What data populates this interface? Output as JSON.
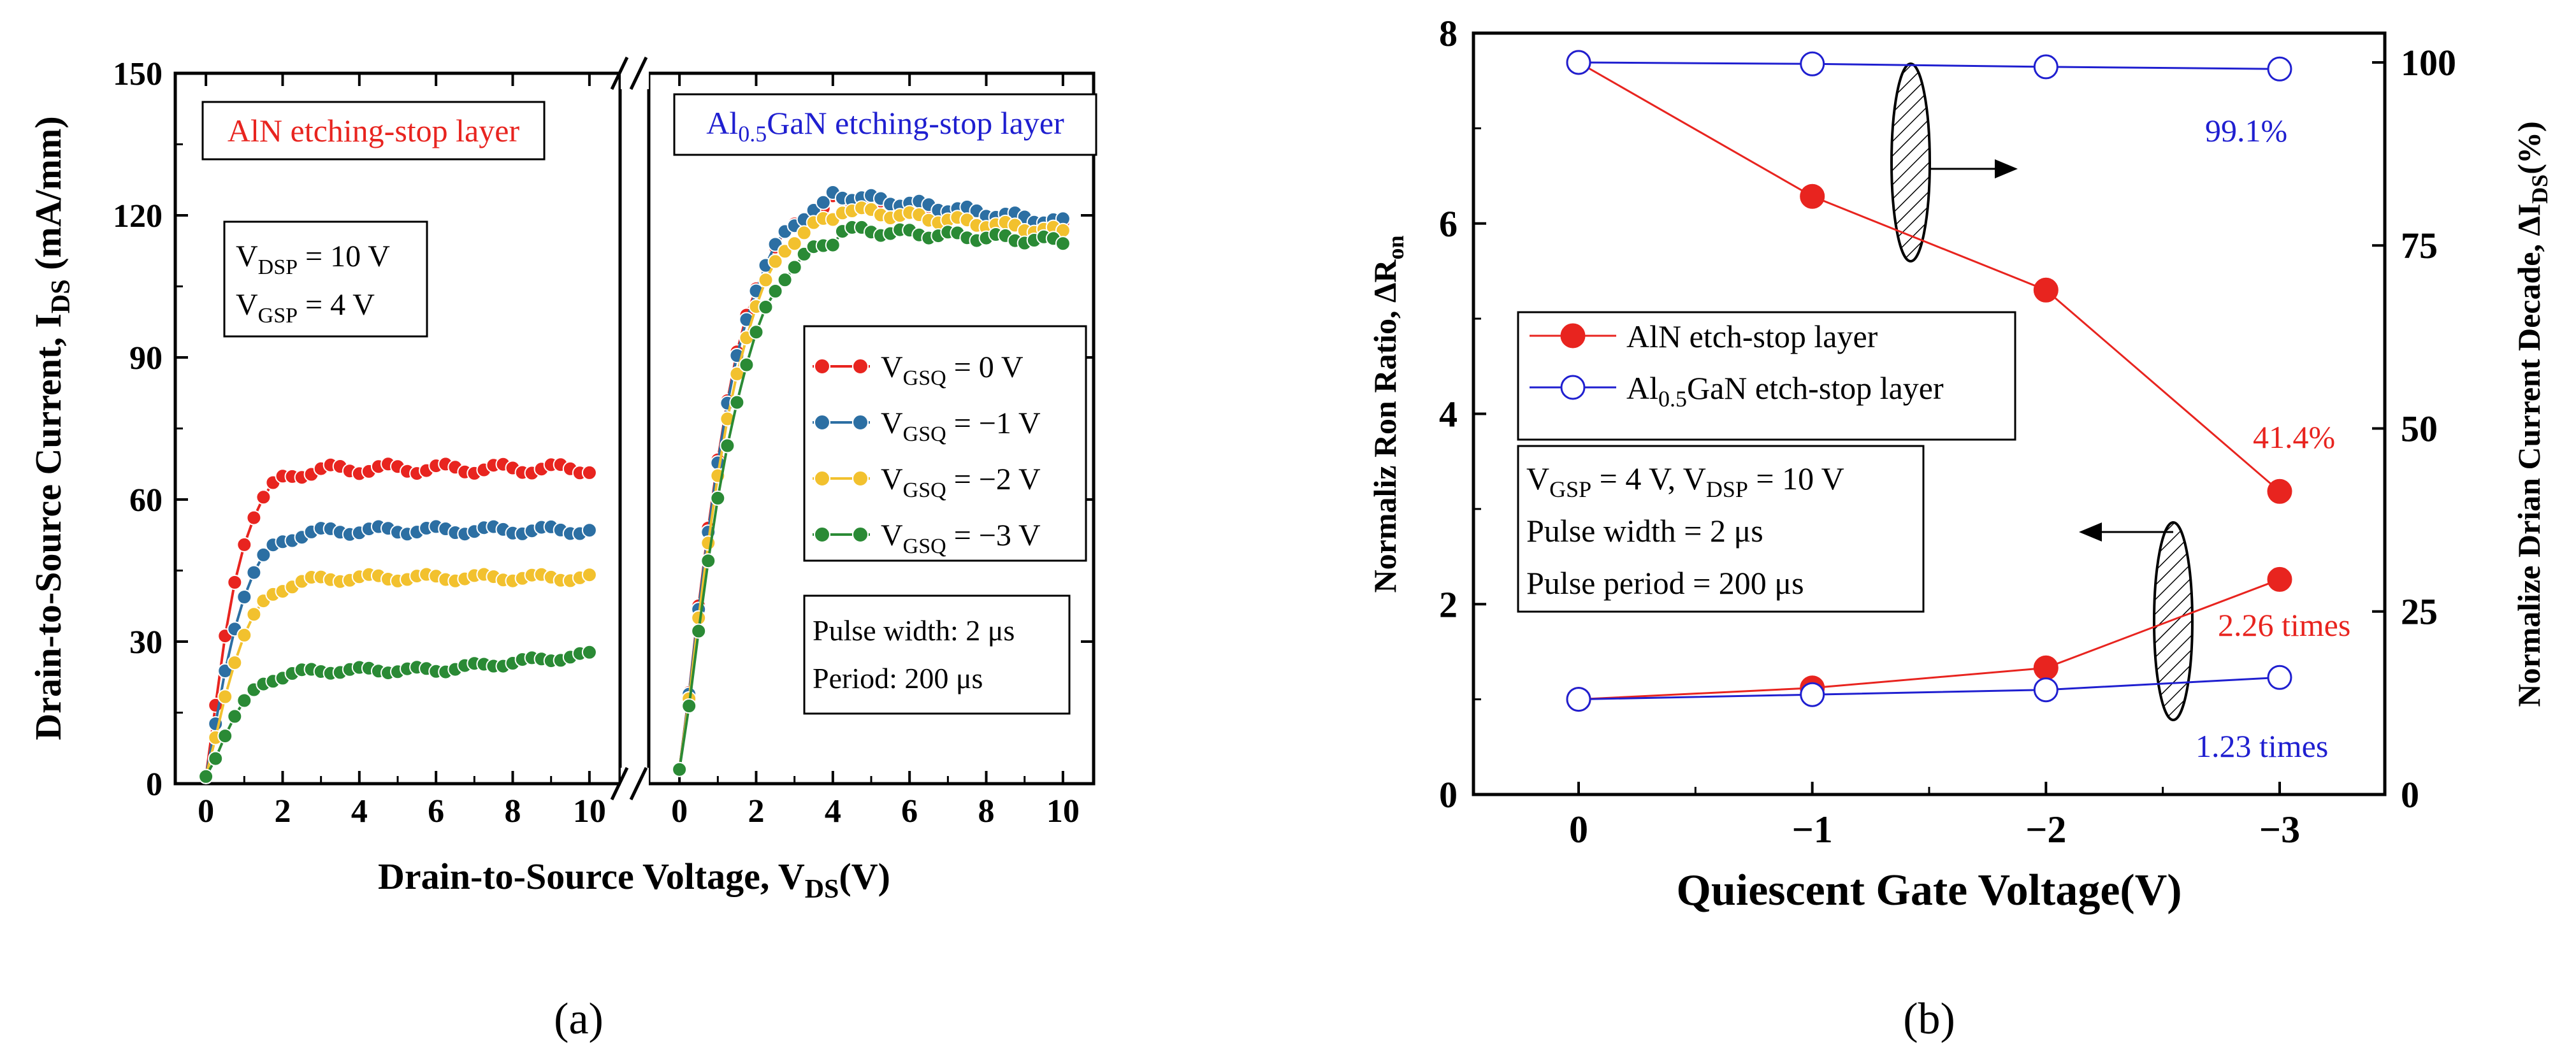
{
  "panel_labels": [
    "(a)",
    "(b)"
  ],
  "colors": {
    "red": "#e8241f",
    "blue": "#2c6fa3",
    "yellow": "#f2c12e",
    "green": "#2a8a35",
    "navy": "#1f1fd0",
    "axis": "#000000"
  },
  "panel_a_text": {
    "inset_left": "AlN etching-stop layer",
    "inset_right_pre": "Al",
    "inset_right_sub": "0.5",
    "inset_right_post": "GaN etching-stop layer",
    "cond_line1_pre": "V",
    "cond_line1_sub": "DSP",
    "cond_line1_post": " = 10 V",
    "cond_line2_pre": "V",
    "cond_line2_sub": "GSP",
    "cond_line2_post": " = 4 V",
    "pulse_line1": "Pulse width: 2 μs",
    "pulse_line2": "Period: 200 μs",
    "legend": [
      {
        "pre": "V",
        "sub": "GSQ",
        "post": " = 0 V"
      },
      {
        "pre": "V",
        "sub": "GSQ",
        "post": " = −1 V"
      },
      {
        "pre": "V",
        "sub": "GSQ",
        "post": " = −2 V"
      },
      {
        "pre": "V",
        "sub": "GSQ",
        "post": " = −3 V"
      }
    ],
    "ylabel_pre": "Drain-to-Source Current, I",
    "ylabel_sub": "DS",
    "ylabel_post": " (mA/mm)",
    "xlabel_pre": "Drain-to-Source Voltage, V",
    "xlabel_sub": "DS",
    "xlabel_post": "(V)"
  },
  "panel_b_text": {
    "legend1": "AlN etch-stop layer",
    "legend2_pre": "Al",
    "legend2_sub": "0.5",
    "legend2_post": "GaN etch-stop layer",
    "cond1_a": "V",
    "cond1_a_sub": "GSP",
    "cond1_b": " = 4 V, V",
    "cond1_b_sub": "DSP",
    "cond1_c": " = 10 V",
    "cond2": "Pulse width = 2 μs",
    "cond3": "Pulse period = 200 μs",
    "ann_991": "99.1%",
    "ann_414": "41.4%",
    "ann_226": "2.26 times",
    "ann_123": "1.23 times",
    "ylabel_left_pre": "Normaliz Ron Ratio, ΔR",
    "ylabel_left_sub": "on",
    "ylabel_right_pre": "Normalize Drian Current Decade, ΔI",
    "ylabel_right_sub": "DS",
    "ylabel_right_post": "(%)",
    "xlabel": "Quiescent Gate Voltage(V)"
  },
  "chart_data": [
    {
      "type": "line",
      "title": "",
      "xlabel": "Drain-to-Source Voltage, VDS(V)",
      "ylabel": "Drain-to-Source Current, IDS (mA/mm)",
      "ylim": [
        0,
        150
      ],
      "yticks": [
        0,
        30,
        60,
        90,
        120,
        150
      ],
      "subpanels": [
        {
          "name": "AlN etching-stop layer",
          "xlim": [
            -0.8,
            10.8
          ],
          "xticks": [
            0,
            2,
            4,
            6,
            8,
            10
          ],
          "series": [
            {
              "name": "VGSQ = 0 V",
              "color": "#e8241f",
              "plateau": 66.5,
              "knee": 1.8,
              "ripple": 1.0
            },
            {
              "name": "VGSQ = −1 V",
              "color": "#2c6fa3",
              "plateau": 53.5,
              "knee": 1.9,
              "ripple": 0.8
            },
            {
              "name": "VGSQ = −2 V",
              "color": "#f2c12e",
              "plateau": 43.5,
              "knee": 2.0,
              "ripple": 0.7
            },
            {
              "name": "VGSQ = −3 V",
              "color": "#2a8a35",
              "plateau": 24.0,
              "knee": 2.0,
              "ripple": 0.6,
              "end": 27.2
            }
          ]
        },
        {
          "name": "Al0.5GaN etching-stop layer",
          "xlim": [
            -0.8,
            10.8
          ],
          "xticks": [
            0,
            2,
            4,
            6,
            8,
            10
          ],
          "series": [
            {
              "name": "VGSQ = 0 V",
              "color": "#e8241f",
              "peak": 123.5,
              "end": 118.0,
              "peak_x": 3.8
            },
            {
              "name": "VGSQ = −1 V",
              "color": "#2c6fa3",
              "peak": 124.5,
              "end": 118.5,
              "peak_x": 3.9
            },
            {
              "name": "VGSQ = −2 V",
              "color": "#f2c12e",
              "peak": 121.5,
              "end": 116.5,
              "peak_x": 4.0
            },
            {
              "name": "VGSQ = −3 V",
              "color": "#2a8a35",
              "peak": 117.0,
              "end": 114.5,
              "peak_x": 4.2
            }
          ]
        }
      ]
    },
    {
      "type": "line",
      "title": "",
      "xlabel": "Quiescent Gate Voltage(V)",
      "ylabel": "Normaliz Ron Ratio, ΔRon",
      "ylabel_right": "Normalize Drian Current Decade, ΔIDS(%)",
      "categories": [
        "0",
        "−1",
        "−2",
        "−3"
      ],
      "x": [
        0,
        -1,
        -2,
        -3
      ],
      "xlim": [
        0.45,
        -3.45
      ],
      "ylim": [
        0,
        8
      ],
      "yticks": [
        0,
        2,
        4,
        6,
        8
      ],
      "ylim_right": [
        0,
        104
      ],
      "yticks_right": [
        0,
        25,
        50,
        75,
        100
      ],
      "series": [
        {
          "name": "AlN etch-stop layer",
          "axis": "left",
          "color": "#e8241f",
          "filled": true,
          "values": [
            1.0,
            1.12,
            1.33,
            2.26
          ]
        },
        {
          "name": "Al0.5GaN etch-stop layer",
          "axis": "left",
          "color": "#1f1fd0",
          "filled": false,
          "values": [
            1.0,
            1.05,
            1.1,
            1.23
          ]
        },
        {
          "name": "AlN etch-stop layer",
          "axis": "right",
          "color": "#e8241f",
          "filled": true,
          "values": [
            100,
            81.7,
            68.9,
            41.4
          ]
        },
        {
          "name": "Al0.5GaN etch-stop layer",
          "axis": "right",
          "color": "#1f1fd0",
          "filled": false,
          "values": [
            100,
            99.8,
            99.4,
            99.1
          ]
        }
      ]
    }
  ]
}
